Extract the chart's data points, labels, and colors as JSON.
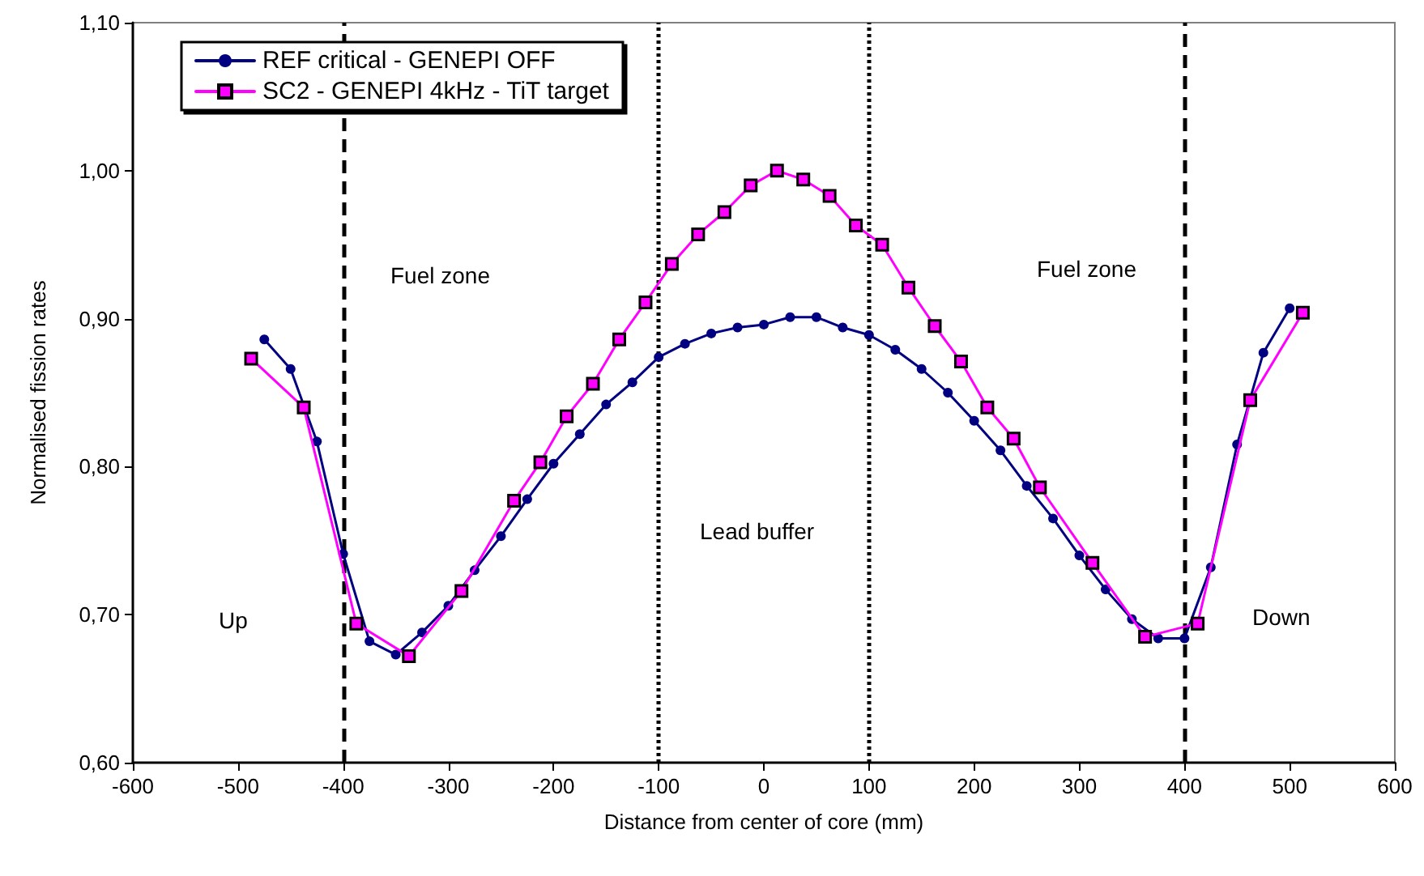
{
  "chart_data": {
    "type": "line",
    "xlabel": "Distance from center of core (mm)",
    "ylabel": "Normalised fission rates",
    "xlim": [
      -600,
      600
    ],
    "xticks": [
      -600,
      -500,
      -400,
      -300,
      -200,
      -100,
      0,
      100,
      200,
      300,
      400,
      500,
      600
    ],
    "ylim": [
      0.6,
      1.1
    ],
    "yticks": [
      {
        "value": 0.6,
        "label": "0,60"
      },
      {
        "value": 0.7,
        "label": "0,70"
      },
      {
        "value": 0.8,
        "label": "0,80"
      },
      {
        "value": 0.9,
        "label": "0,90"
      },
      {
        "value": 1.0,
        "label": "1,00"
      },
      {
        "value": 1.1,
        "label": "1,10"
      }
    ],
    "grid": false,
    "legend": "top left",
    "line_style": "solid",
    "series": [
      {
        "name": "REF critical - GENEPI OFF",
        "color": "#000080",
        "marker": "circle",
        "x": [
          -475,
          -450,
          -425,
          -400,
          -375,
          -350,
          -325,
          -300,
          -275,
          -250,
          -225,
          -200,
          -175,
          -150,
          -125,
          -100,
          -75,
          -50,
          -25,
          0,
          25,
          50,
          75,
          100,
          125,
          150,
          175,
          200,
          225,
          250,
          275,
          300,
          325,
          350,
          375,
          400,
          425,
          450,
          475,
          500
        ],
        "values": [
          0.886,
          0.866,
          0.817,
          0.741,
          0.682,
          0.673,
          0.688,
          0.706,
          0.73,
          0.753,
          0.778,
          0.802,
          0.822,
          0.842,
          0.857,
          0.874,
          0.883,
          0.89,
          0.894,
          0.896,
          0.901,
          0.901,
          0.894,
          0.889,
          0.879,
          0.866,
          0.85,
          0.831,
          0.811,
          0.787,
          0.765,
          0.74,
          0.717,
          0.697,
          0.684,
          0.684,
          0.732,
          0.815,
          0.877,
          0.907
        ]
      },
      {
        "name": "SC2 - GENEPI 4kHz - TiT target",
        "color": "#ff00ff",
        "marker": "square",
        "x": [
          -487.5,
          -437.5,
          -387.5,
          -337.5,
          -287.5,
          -237.5,
          -212.5,
          -187.5,
          -162.5,
          -137.5,
          -112.5,
          -87.5,
          -62.5,
          -37.5,
          -12.5,
          12.5,
          37.5,
          62.5,
          87.5,
          112.5,
          137.5,
          162.5,
          187.5,
          212.5,
          237.5,
          262.5,
          312.5,
          362.5,
          412.5,
          462.5,
          512.5
        ],
        "values": [
          0.873,
          0.84,
          0.694,
          0.672,
          0.716,
          0.777,
          0.803,
          0.834,
          0.856,
          0.886,
          0.911,
          0.937,
          0.957,
          0.972,
          0.99,
          1.0,
          0.994,
          0.983,
          0.963,
          0.95,
          0.921,
          0.895,
          0.871,
          0.84,
          0.819,
          0.786,
          0.735,
          0.685,
          0.694,
          0.845,
          0.904
        ]
      }
    ],
    "ref_lines": [
      {
        "axis": "x",
        "value": -400,
        "line_style": "dashed",
        "color": "#000000"
      },
      {
        "axis": "x",
        "value": 400,
        "line_style": "dashed",
        "color": "#000000"
      },
      {
        "axis": "x",
        "value": -100,
        "line_style": "dotted",
        "color": "#000000"
      },
      {
        "axis": "x",
        "value": 100,
        "line_style": "dotted",
        "color": "#000000"
      }
    ],
    "annotations": [
      "Up",
      "Fuel zone",
      "Lead buffer",
      "Fuel zone",
      "Down"
    ]
  }
}
